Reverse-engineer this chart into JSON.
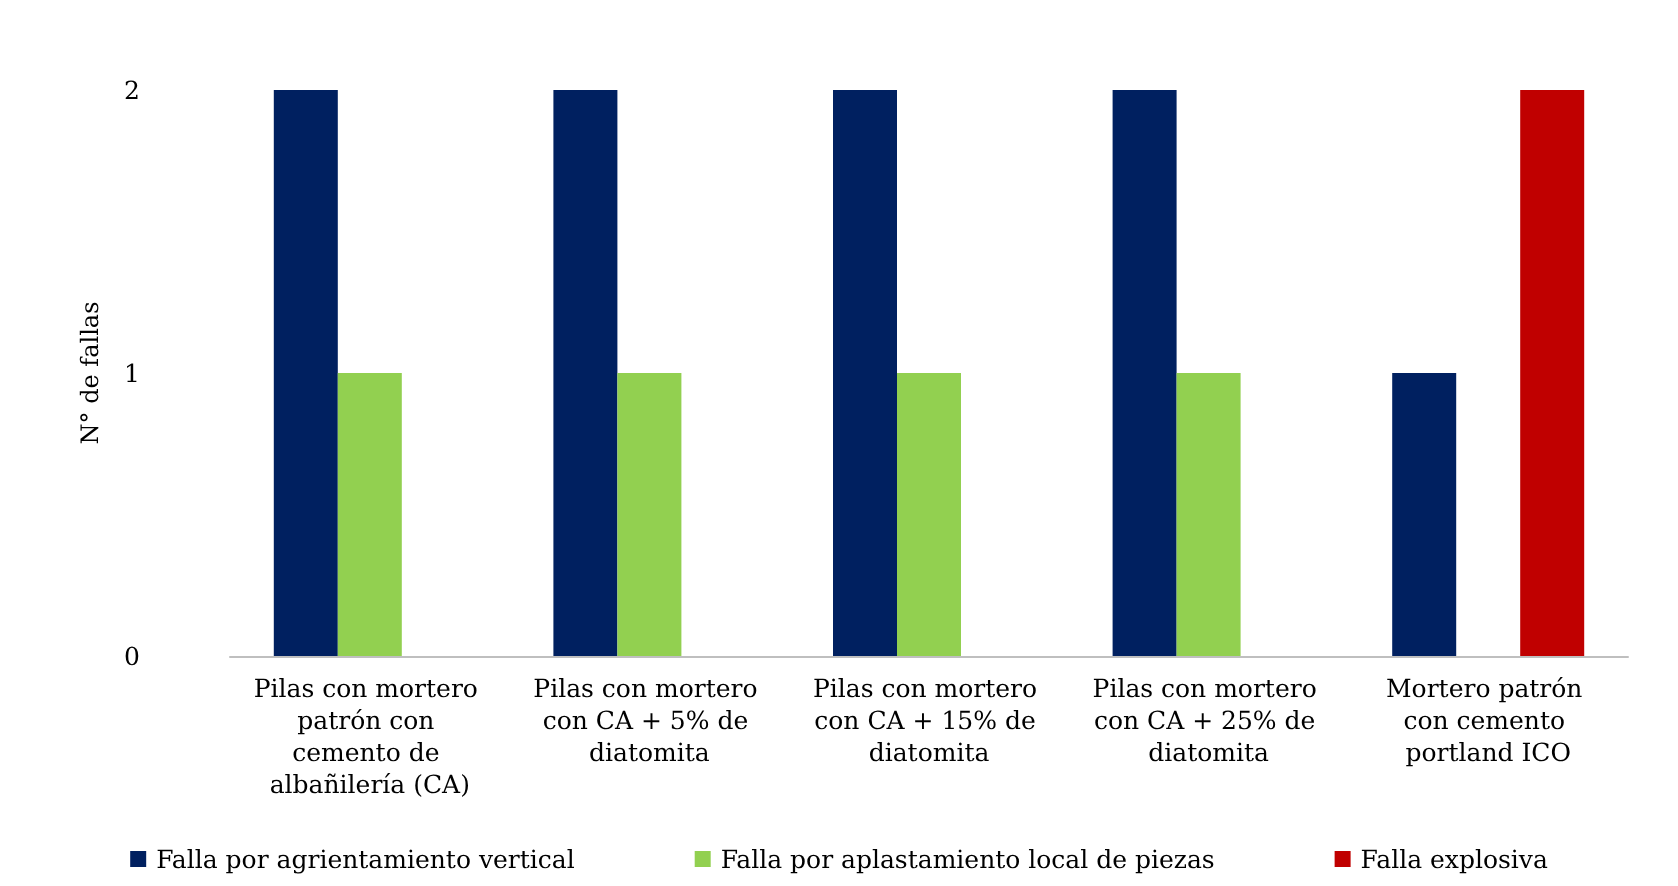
{
  "chart_data": {
    "type": "bar",
    "ylabel": "N° de fallas",
    "categories": [
      "Pilas con mortero patrón con cemento de albañilería (CA)",
      "Pilas con mortero con CA + 5% de diatomita",
      "Pilas con mortero con CA + 15% de diatomita",
      "Pilas con mortero con CA + 25% de diatomita",
      "Mortero patrón con cemento portland ICO"
    ],
    "series": [
      {
        "name": "Falla por agrientamiento vertical",
        "color": "#002060",
        "values": [
          2,
          2,
          2,
          2,
          1
        ]
      },
      {
        "name": "Falla por aplastamiento local de piezas",
        "color": "#92d050",
        "values": [
          1,
          1,
          1,
          1,
          0
        ]
      },
      {
        "name": "Falla explosiva",
        "color": "#c00000",
        "values": [
          0,
          0,
          0,
          0,
          2
        ]
      }
    ],
    "ylim": [
      0,
      2
    ],
    "yticks": [
      0,
      1,
      2
    ],
    "grid": false,
    "legend": "bottom"
  }
}
